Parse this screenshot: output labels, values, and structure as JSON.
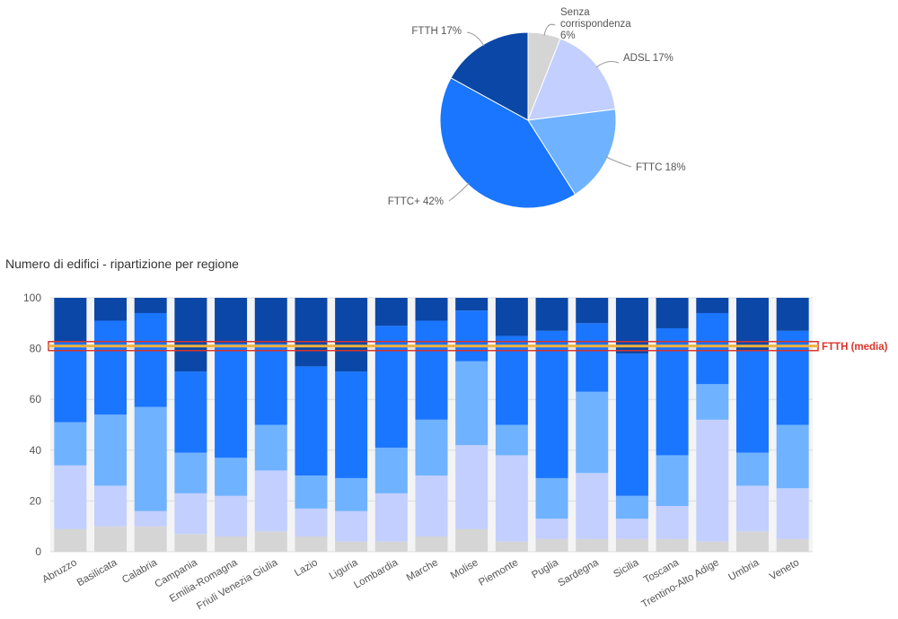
{
  "chart_data": [
    {
      "type": "pie",
      "slices": [
        {
          "label": "Senza corrispondenza",
          "value": 6,
          "color": "#d5d5d5",
          "label_lines": [
            "Senza",
            "corrispondenza",
            "6%"
          ]
        },
        {
          "label": "ADSL",
          "value": 17,
          "color": "#c2cfff",
          "label_lines": [
            "ADSL 17%"
          ]
        },
        {
          "label": "FTTC",
          "value": 18,
          "color": "#6fb2ff",
          "label_lines": [
            "FTTC 18%"
          ]
        },
        {
          "label": "FTTC+",
          "value": 42,
          "color": "#1a75ff",
          "label_lines": [
            "FTTC+ 42%"
          ]
        },
        {
          "label": "FTTH",
          "value": 17,
          "color": "#0a47a6",
          "label_lines": [
            "FTTH 17%"
          ]
        }
      ]
    },
    {
      "type": "bar",
      "stacked": true,
      "title": "Numero di edifici - ripartizione per regione",
      "ylim": [
        0,
        100
      ],
      "yticks": [
        0,
        20,
        40,
        60,
        80,
        100
      ],
      "grid": true,
      "categories": [
        "Abruzzo",
        "Basilicata",
        "Calabria",
        "Campania",
        "Emilia-Romagna",
        "Friuli Venezia Giulia",
        "Lazio",
        "Liguria",
        "Lombardia",
        "Marche",
        "Molise",
        "Piemonte",
        "Puglia",
        "Sardegna",
        "Sicilia",
        "Toscana",
        "Trentino-Alto Adige",
        "Umbria",
        "Veneto"
      ],
      "series": [
        {
          "key": "senza",
          "color": "#d5d5d5",
          "values": [
            9,
            10,
            10,
            7,
            6,
            8,
            6,
            4,
            4,
            6,
            9,
            4,
            5,
            5,
            5,
            5,
            4,
            8,
            5
          ]
        },
        {
          "key": "adsl",
          "color": "#c2cfff",
          "values": [
            25,
            16,
            6,
            16,
            16,
            24,
            11,
            12,
            19,
            24,
            33,
            34,
            8,
            26,
            8,
            13,
            48,
            18,
            20
          ]
        },
        {
          "key": "fttc",
          "color": "#6fb2ff",
          "values": [
            17,
            28,
            41,
            16,
            15,
            18,
            13,
            13,
            18,
            22,
            33,
            12,
            16,
            32,
            9,
            20,
            14,
            13,
            25
          ]
        },
        {
          "key": "fttcplus",
          "color": "#1a75ff",
          "values": [
            32,
            37,
            37,
            32,
            45,
            32,
            43,
            42,
            48,
            39,
            20,
            35,
            58,
            27,
            56,
            50,
            28,
            40,
            37
          ]
        },
        {
          "key": "ftth",
          "color": "#0a47a6",
          "values": [
            17,
            9,
            6,
            29,
            18,
            18,
            27,
            29,
            11,
            9,
            5,
            15,
            13,
            10,
            22,
            12,
            6,
            21,
            13
          ]
        }
      ],
      "reference_line": {
        "label": "FTTH (media)",
        "value": 81,
        "color": "#d8342b",
        "fill": "#f0b13b"
      }
    }
  ]
}
